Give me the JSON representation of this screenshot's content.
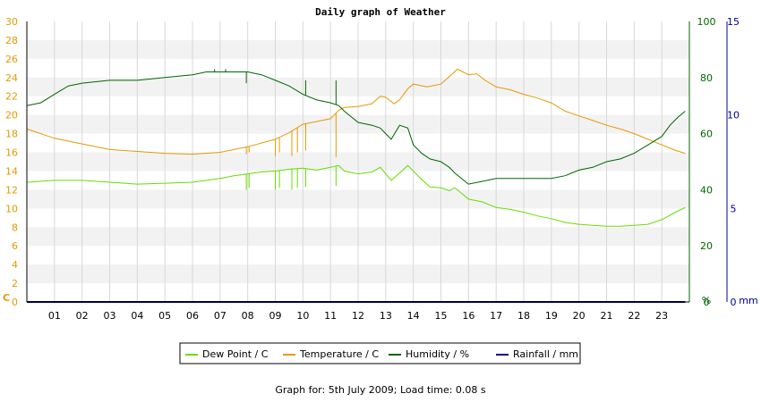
{
  "chart_data": {
    "type": "line",
    "title": "Daily graph of Weather",
    "x_ticks": [
      "01",
      "02",
      "03",
      "04",
      "05",
      "06",
      "07",
      "08",
      "09",
      "10",
      "11",
      "12",
      "13",
      "14",
      "15",
      "16",
      "17",
      "18",
      "19",
      "20",
      "21",
      "22",
      "23"
    ],
    "x_range": [
      0,
      24
    ],
    "left_axis": {
      "unit": "C",
      "range": [
        0,
        30
      ],
      "ticks": [
        0,
        2,
        4,
        6,
        8,
        10,
        12,
        14,
        16,
        18,
        20,
        22,
        24,
        26,
        28,
        30
      ],
      "color": "#e69900"
    },
    "middle_axis": {
      "unit": "%",
      "range": [
        0,
        100
      ],
      "ticks": [
        0,
        20,
        40,
        60,
        80,
        100
      ],
      "color": "#006600"
    },
    "right_axis": {
      "unit": "mm",
      "range": [
        0,
        15
      ],
      "ticks": [
        0,
        5,
        10,
        15
      ],
      "color": "#000099"
    },
    "series": [
      {
        "name": "Dew Point / C",
        "axis": "left",
        "color": "#66dd00",
        "points": [
          [
            0,
            12.8
          ],
          [
            1,
            13.0
          ],
          [
            2,
            13.0
          ],
          [
            3,
            12.8
          ],
          [
            4,
            12.6
          ],
          [
            5,
            12.7
          ],
          [
            6,
            12.8
          ],
          [
            6.5,
            13.0
          ],
          [
            7,
            13.2
          ],
          [
            7.5,
            13.5
          ],
          [
            8,
            13.7
          ],
          [
            8.5,
            13.9
          ],
          [
            9,
            14.0
          ],
          [
            9.5,
            14.2
          ],
          [
            10,
            14.3
          ],
          [
            10.5,
            14.1
          ],
          [
            11,
            14.4
          ],
          [
            11.3,
            14.6
          ],
          [
            11.5,
            14.0
          ],
          [
            12,
            13.7
          ],
          [
            12.5,
            13.9
          ],
          [
            12.8,
            14.4
          ],
          [
            13,
            13.7
          ],
          [
            13.2,
            13.0
          ],
          [
            13.5,
            13.8
          ],
          [
            13.8,
            14.6
          ],
          [
            14,
            14.0
          ],
          [
            14.3,
            13.1
          ],
          [
            14.6,
            12.3
          ],
          [
            15,
            12.2
          ],
          [
            15.3,
            11.9
          ],
          [
            15.5,
            12.2
          ],
          [
            15.8,
            11.5
          ],
          [
            16,
            11.0
          ],
          [
            16.5,
            10.7
          ],
          [
            17,
            10.1
          ],
          [
            17.5,
            9.9
          ],
          [
            18,
            9.6
          ],
          [
            18.5,
            9.2
          ],
          [
            19,
            8.9
          ],
          [
            19.5,
            8.5
          ],
          [
            20,
            8.3
          ],
          [
            20.5,
            8.2
          ],
          [
            21,
            8.1
          ],
          [
            21.5,
            8.1
          ],
          [
            22,
            8.2
          ],
          [
            22.5,
            8.3
          ],
          [
            23,
            8.8
          ],
          [
            23.5,
            9.6
          ],
          [
            23.85,
            10.1
          ]
        ]
      },
      {
        "name": "Temperature / C",
        "axis": "left",
        "color": "#e69900",
        "points": [
          [
            0,
            18.5
          ],
          [
            1,
            17.5
          ],
          [
            2,
            16.9
          ],
          [
            3,
            16.3
          ],
          [
            4,
            16.1
          ],
          [
            5,
            15.9
          ],
          [
            6,
            15.8
          ],
          [
            7,
            16.0
          ],
          [
            8,
            16.6
          ],
          [
            9,
            17.4
          ],
          [
            9.5,
            18.1
          ],
          [
            10,
            19.0
          ],
          [
            10.5,
            19.3
          ],
          [
            11,
            19.6
          ],
          [
            11.3,
            20.5
          ],
          [
            11.5,
            20.8
          ],
          [
            12,
            20.9
          ],
          [
            12.5,
            21.2
          ],
          [
            12.8,
            22.0
          ],
          [
            13,
            21.9
          ],
          [
            13.3,
            21.2
          ],
          [
            13.5,
            21.6
          ],
          [
            13.8,
            22.8
          ],
          [
            14,
            23.3
          ],
          [
            14.5,
            23.0
          ],
          [
            15,
            23.3
          ],
          [
            15.3,
            24.1
          ],
          [
            15.6,
            24.9
          ],
          [
            16,
            24.3
          ],
          [
            16.3,
            24.4
          ],
          [
            16.6,
            23.7
          ],
          [
            17,
            23.0
          ],
          [
            17.5,
            22.7
          ],
          [
            18,
            22.2
          ],
          [
            18.5,
            21.8
          ],
          [
            19,
            21.3
          ],
          [
            19.5,
            20.4
          ],
          [
            20,
            19.9
          ],
          [
            20.5,
            19.4
          ],
          [
            21,
            18.9
          ],
          [
            21.5,
            18.5
          ],
          [
            22,
            18.0
          ],
          [
            22.5,
            17.4
          ],
          [
            23,
            16.8
          ],
          [
            23.5,
            16.2
          ],
          [
            23.85,
            15.9
          ]
        ]
      },
      {
        "name": "Humidity / %",
        "axis": "middle",
        "color": "#006600",
        "points": [
          [
            0,
            70
          ],
          [
            0.5,
            71
          ],
          [
            1,
            74
          ],
          [
            1.5,
            77
          ],
          [
            2,
            78
          ],
          [
            3,
            79
          ],
          [
            4,
            79
          ],
          [
            5,
            80
          ],
          [
            6,
            81
          ],
          [
            6.5,
            82
          ],
          [
            7,
            82
          ],
          [
            8,
            82
          ],
          [
            8.5,
            81
          ],
          [
            9,
            79
          ],
          [
            9.5,
            77
          ],
          [
            10,
            74
          ],
          [
            10.5,
            72
          ],
          [
            11,
            71
          ],
          [
            11.3,
            70
          ],
          [
            11.5,
            68
          ],
          [
            12,
            64
          ],
          [
            12.5,
            63
          ],
          [
            12.8,
            62
          ],
          [
            13,
            60
          ],
          [
            13.2,
            58
          ],
          [
            13.5,
            63
          ],
          [
            13.8,
            62
          ],
          [
            14,
            56
          ],
          [
            14.3,
            53
          ],
          [
            14.6,
            51
          ],
          [
            15,
            50
          ],
          [
            15.3,
            48
          ],
          [
            15.5,
            46
          ],
          [
            16,
            42
          ],
          [
            16.5,
            43
          ],
          [
            17,
            44
          ],
          [
            17.5,
            44
          ],
          [
            18,
            44
          ],
          [
            18.5,
            44
          ],
          [
            19,
            44
          ],
          [
            19.5,
            45
          ],
          [
            20,
            47
          ],
          [
            20.5,
            48
          ],
          [
            21,
            50
          ],
          [
            21.5,
            51
          ],
          [
            22,
            53
          ],
          [
            22.5,
            56
          ],
          [
            23,
            59
          ],
          [
            23.3,
            63
          ],
          [
            23.6,
            66
          ],
          [
            23.85,
            68
          ]
        ]
      },
      {
        "name": "Rainfall / mm",
        "axis": "right",
        "color": "#000099",
        "points": [
          [
            0,
            0
          ],
          [
            23.85,
            0
          ]
        ]
      }
    ],
    "spikes": [
      {
        "series": 0,
        "x": 7.95,
        "to": 12.0
      },
      {
        "series": 0,
        "x": 8.05,
        "to": 12.2
      },
      {
        "series": 0,
        "x": 9.0,
        "to": 12.0
      },
      {
        "series": 0,
        "x": 9.15,
        "to": 12.2
      },
      {
        "series": 0,
        "x": 9.6,
        "to": 12.0
      },
      {
        "series": 0,
        "x": 9.8,
        "to": 12.2
      },
      {
        "series": 0,
        "x": 10.1,
        "to": 12.3
      },
      {
        "series": 0,
        "x": 11.2,
        "to": 12.4
      },
      {
        "series": 1,
        "x": 7.95,
        "to": 15.8
      },
      {
        "series": 1,
        "x": 8.05,
        "to": 16.0
      },
      {
        "series": 1,
        "x": 9.0,
        "to": 15.6
      },
      {
        "series": 1,
        "x": 9.15,
        "to": 16.0
      },
      {
        "series": 1,
        "x": 9.6,
        "to": 15.6
      },
      {
        "series": 1,
        "x": 9.8,
        "to": 16.0
      },
      {
        "series": 1,
        "x": 10.1,
        "to": 16.2
      },
      {
        "series": 1,
        "x": 11.2,
        "to": 15.5
      },
      {
        "series": 2,
        "x": 7.95,
        "to": 78
      },
      {
        "series": 2,
        "x": 8.05,
        "to": 82
      },
      {
        "series": 2,
        "x": 6.8,
        "to": 83
      },
      {
        "series": 2,
        "x": 7.2,
        "to": 83
      },
      {
        "series": 2,
        "x": 10.1,
        "to": 79
      },
      {
        "series": 2,
        "x": 11.2,
        "to": 79
      }
    ],
    "grid": true,
    "legend_position": "bottom"
  },
  "footer": "Graph for: 5th July 2009; Load time: 0.08 s"
}
